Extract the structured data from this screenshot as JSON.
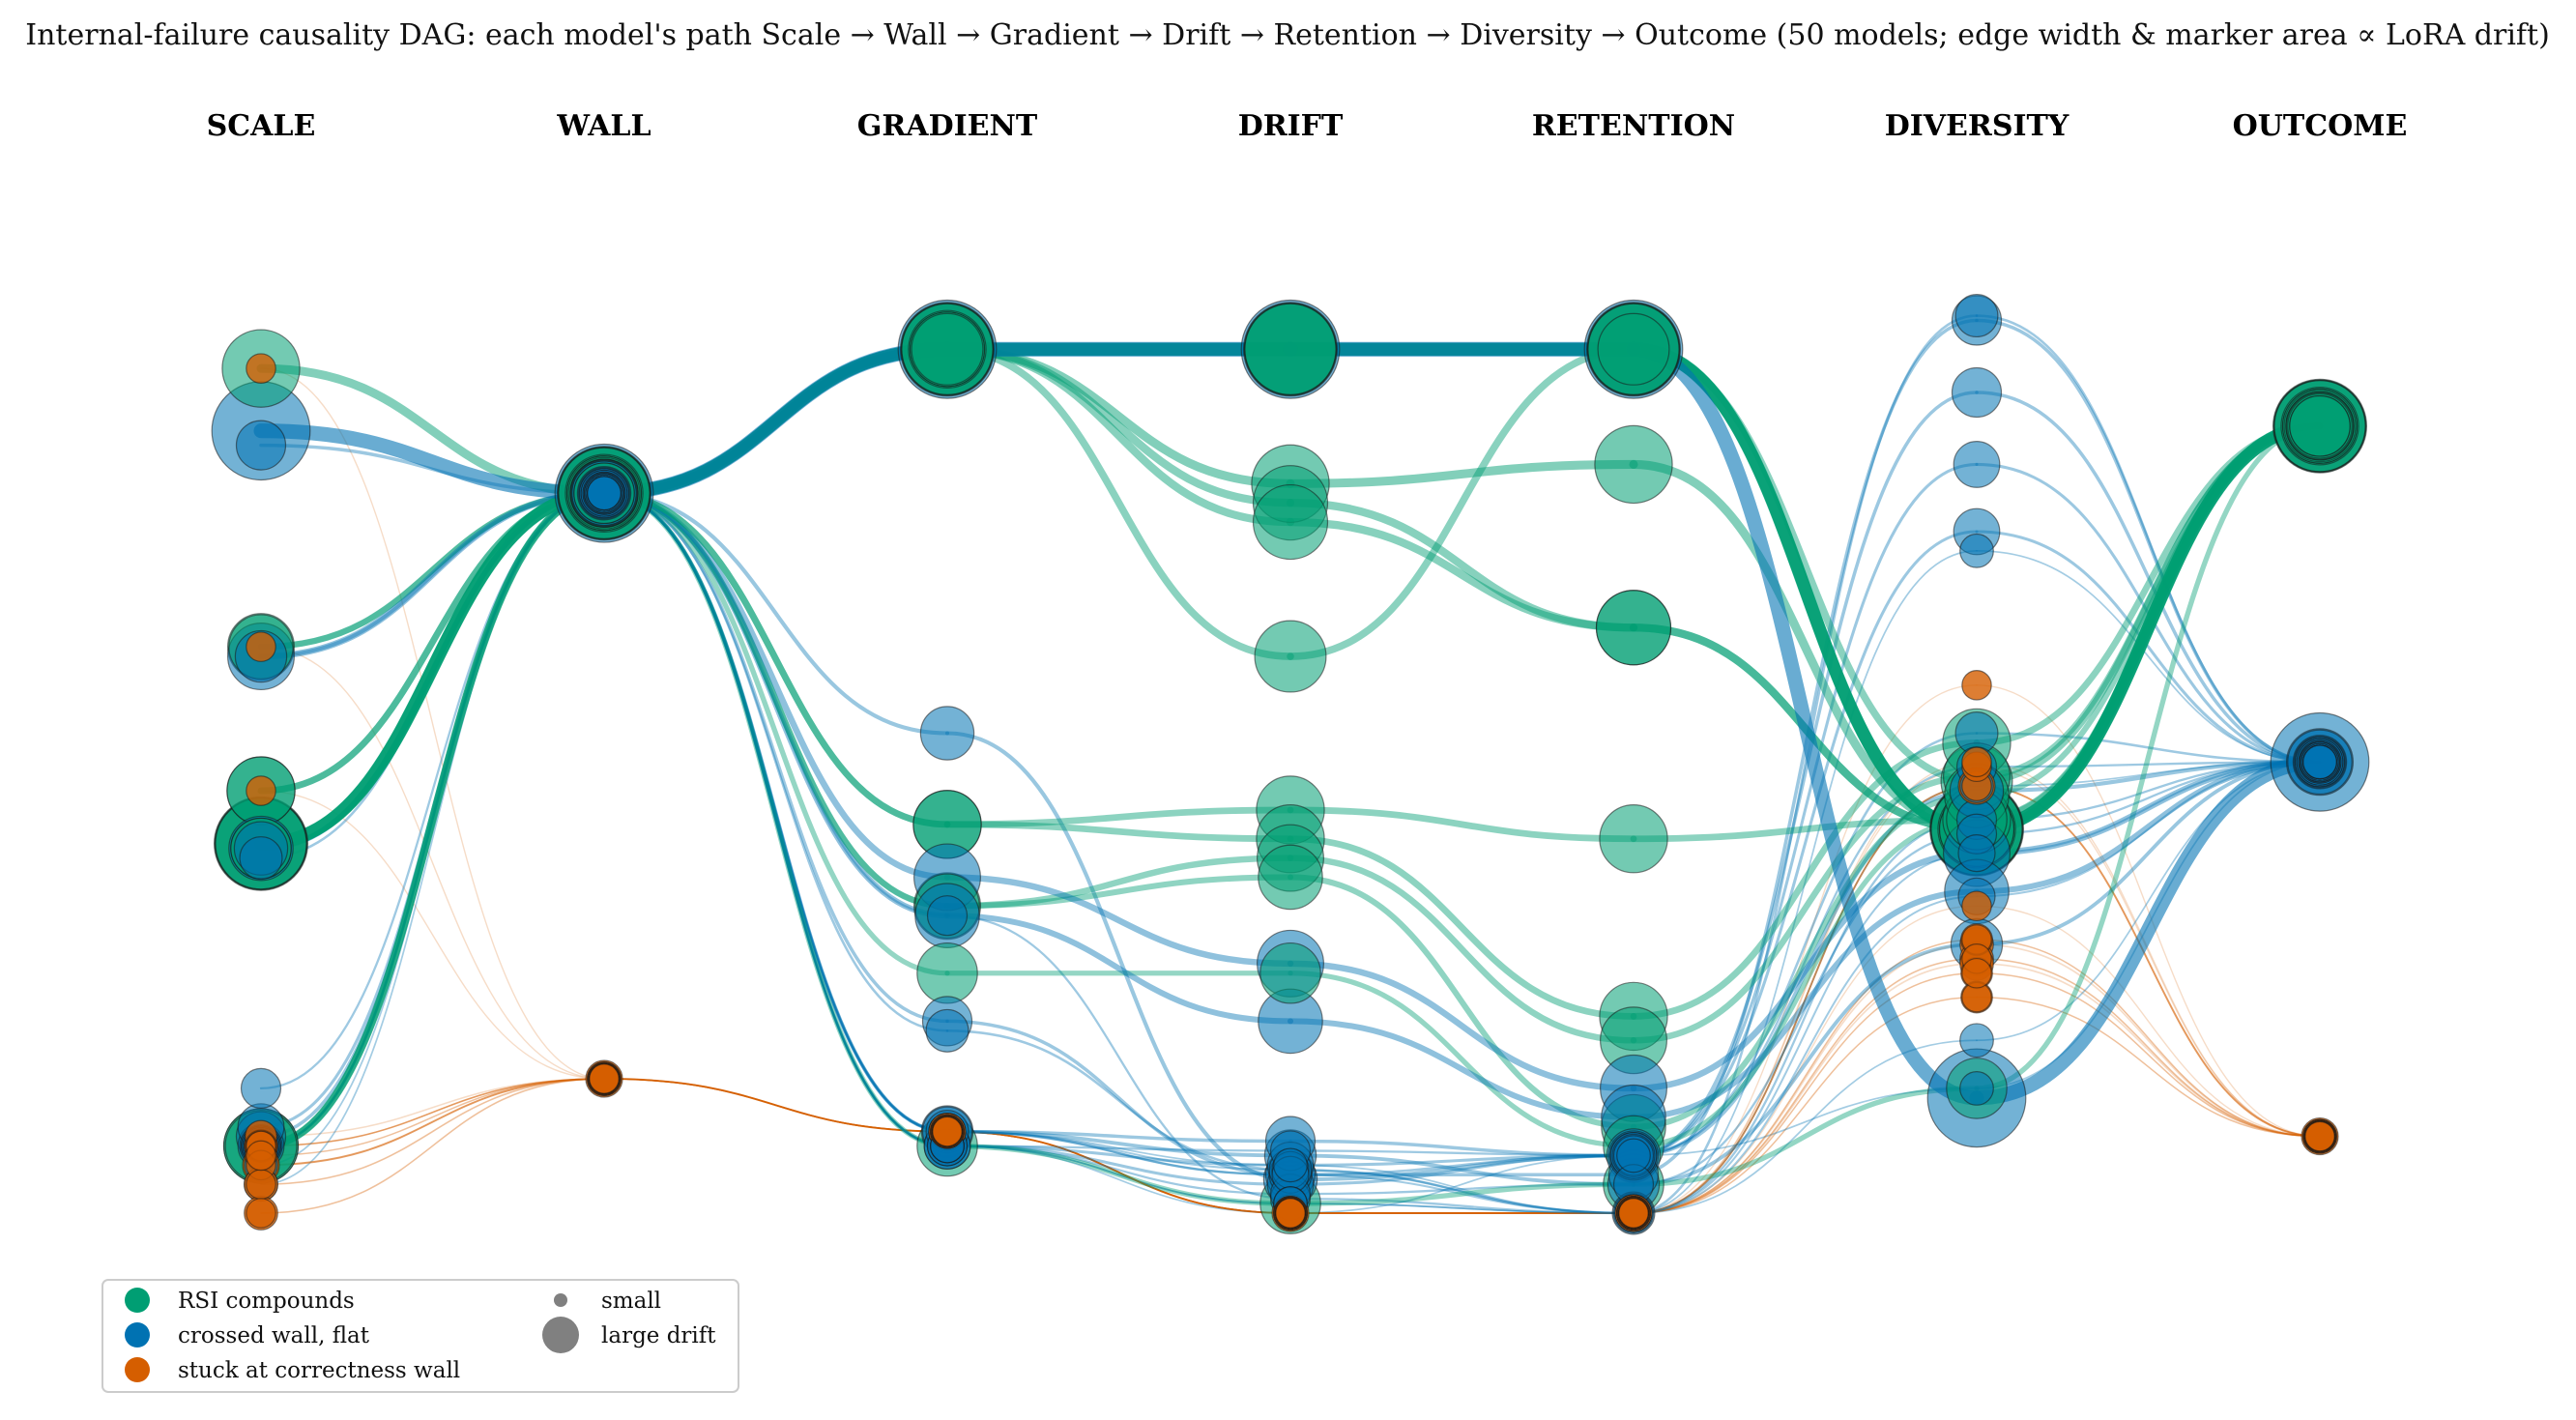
{
  "figure": {
    "title": "Internal-failure causality DAG: each model's path Scale → Wall → Gradient → Drift → Retention → Diversity → Outcome (50 models; edge width & marker area ∝ LoRA drift)"
  },
  "columns": [
    "SCALE",
    "WALL",
    "GRADIENT",
    "DRIFT",
    "RETENTION",
    "DIVERSITY",
    "OUTCOME"
  ],
  "colors": {
    "rsi": "#009E73",
    "flat": "#0072B2",
    "stuck": "#D55E00",
    "size_key": "#808080"
  },
  "legend": {
    "rsi": "RSI compounds",
    "flat": "crossed wall, flat",
    "stuck": "stuck at correctness wall",
    "small": "small",
    "large": "large drift"
  },
  "chart_data": {
    "type": "sankey-dag",
    "stages": [
      "Scale",
      "Wall",
      "Gradient",
      "Drift",
      "Retention",
      "Diversity",
      "Outcome"
    ],
    "categories": [
      "RSI compounds",
      "crossed wall, flat",
      "stuck at correctness wall"
    ],
    "model_count": 50,
    "paths": [
      {
        "c": "flat",
        "d": 0.95,
        "p": [
          0.815,
          0.75,
          0.9,
          0.9,
          0.9,
          0.12,
          0.47
        ]
      },
      {
        "c": "rsi",
        "d": 0.8,
        "p": [
          0.385,
          0.75,
          0.9,
          0.9,
          0.9,
          0.4,
          0.82
        ]
      },
      {
        "c": "rsi",
        "d": 0.8,
        "p": [
          0.385,
          0.75,
          0.9,
          0.9,
          0.9,
          0.4,
          0.82
        ]
      },
      {
        "c": "rsi",
        "d": 0.82,
        "p": [
          0.385,
          0.75,
          0.9,
          0.9,
          0.9,
          0.4,
          0.82
        ]
      },
      {
        "c": "rsi",
        "d": 0.85,
        "p": [
          0.385,
          0.75,
          0.9,
          0.9,
          0.9,
          0.4,
          0.82
        ]
      },
      {
        "c": "rsi",
        "d": 0.55,
        "p": [
          0.88,
          0.75,
          0.9,
          0.76,
          0.78,
          0.4,
          0.82
        ]
      },
      {
        "c": "rsi",
        "d": 0.5,
        "p": [
          0.07,
          0.75,
          0.9,
          0.74,
          0.61,
          0.4,
          0.82
        ]
      },
      {
        "c": "rsi",
        "d": 0.5,
        "p": [
          0.07,
          0.75,
          0.9,
          0.72,
          0.61,
          0.4,
          0.82
        ]
      },
      {
        "c": "rsi",
        "d": 0.45,
        "p": [
          0.07,
          0.75,
          0.9,
          0.58,
          0.9,
          0.45,
          0.82
        ]
      },
      {
        "c": "rsi",
        "d": 0.4,
        "p": [
          0.44,
          0.75,
          0.405,
          0.42,
          0.39,
          0.41,
          0.82
        ]
      },
      {
        "c": "rsi",
        "d": 0.4,
        "p": [
          0.44,
          0.75,
          0.405,
          0.39,
          0.205,
          0.49,
          0.82
        ]
      },
      {
        "c": "rsi",
        "d": 0.38,
        "p": [
          0.59,
          0.75,
          0.32,
          0.37,
          0.18,
          0.455,
          0.82
        ]
      },
      {
        "c": "rsi",
        "d": 0.35,
        "p": [
          0.59,
          0.75,
          0.32,
          0.35,
          0.09,
          0.435,
          0.82
        ]
      },
      {
        "c": "rsi",
        "d": 0.3,
        "p": [
          0.38,
          0.75,
          0.25,
          0.25,
          0.07,
          0.41,
          0.82
        ]
      },
      {
        "c": "rsi",
        "d": 0.3,
        "p": [
          0.38,
          0.75,
          0.07,
          0.01,
          0.03,
          0.13,
          0.82
        ]
      },
      {
        "c": "flat",
        "d": 0.38,
        "p": [
          0.58,
          0.75,
          0.35,
          0.26,
          0.13,
          0.375,
          0.47
        ]
      },
      {
        "c": "flat",
        "d": 0.35,
        "p": [
          0.38,
          0.75,
          0.31,
          0.2,
          0.1,
          0.335,
          0.47
        ]
      },
      {
        "c": "flat",
        "d": 0.2,
        "p": [
          0.58,
          0.75,
          0.085,
          0.06,
          0.03,
          0.28,
          0.47
        ]
      },
      {
        "c": "flat",
        "d": 0.22,
        "p": [
          0.38,
          0.75,
          0.5,
          0.035,
          0.06,
          0.44,
          0.47
        ]
      },
      {
        "c": "flat",
        "d": 0.18,
        "p": [
          0.8,
          0.75,
          0.2,
          0.04,
          0.04,
          0.93,
          0.47
        ]
      },
      {
        "c": "flat",
        "d": 0.18,
        "p": [
          0.08,
          0.75,
          0.085,
          0.075,
          0.06,
          0.855,
          0.47
        ]
      },
      {
        "c": "flat",
        "d": 0.15,
        "p": [
          0.07,
          0.75,
          0.07,
          0.03,
          0.06,
          0.78,
          0.47
        ]
      },
      {
        "c": "flat",
        "d": 0.15,
        "p": [
          0.09,
          0.75,
          0.07,
          0.05,
          0.06,
          0.71,
          0.47
        ]
      },
      {
        "c": "flat",
        "d": 0.12,
        "p": [
          0.07,
          0.75,
          0.085,
          0.04,
          0.06,
          0.5,
          0.47
        ]
      },
      {
        "c": "flat",
        "d": 0.12,
        "p": [
          0.37,
          0.75,
          0.19,
          0.045,
          0.0,
          0.935,
          0.47
        ]
      },
      {
        "c": "flat",
        "d": 0.1,
        "p": [
          0.13,
          0.75,
          0.31,
          0.015,
          0.0,
          0.41,
          0.47
        ]
      },
      {
        "c": "flat",
        "d": 0.1,
        "p": [
          0.07,
          0.75,
          0.07,
          0.065,
          0.06,
          0.465,
          0.47
        ]
      },
      {
        "c": "flat",
        "d": 0.1,
        "p": [
          0.07,
          0.75,
          0.07,
          0.02,
          0.03,
          0.395,
          0.47
        ]
      },
      {
        "c": "flat",
        "d": 0.08,
        "p": [
          0.07,
          0.75,
          0.085,
          0.045,
          0.0,
          0.375,
          0.47
        ]
      },
      {
        "c": "flat",
        "d": 0.08,
        "p": [
          0.07,
          0.75,
          0.085,
          0.04,
          0.0,
          0.33,
          0.47
        ]
      },
      {
        "c": "flat",
        "d": 0.06,
        "p": [
          0.07,
          0.75,
          0.07,
          0.01,
          0.0,
          0.18,
          0.47
        ]
      },
      {
        "c": "flat",
        "d": 0.06,
        "p": [
          0.05,
          0.75,
          0.07,
          0.0,
          0.06,
          0.13,
          0.47
        ]
      },
      {
        "c": "flat",
        "d": 0.06,
        "p": [
          0.07,
          0.75,
          0.07,
          0.01,
          0.0,
          0.69,
          0.47
        ]
      },
      {
        "c": "flat",
        "d": 0.06,
        "p": [
          0.03,
          0.75,
          0.085,
          0.05,
          0.0,
          0.445,
          0.47
        ]
      },
      {
        "c": "stuck",
        "d": 0.08,
        "p": [
          0.05,
          0.14,
          0.085,
          0.0,
          0.0,
          0.445,
          0.08
        ]
      },
      {
        "c": "stuck",
        "d": 0.06,
        "p": [
          0.03,
          0.14,
          0.085,
          0.0,
          0.0,
          0.28,
          0.08
        ]
      },
      {
        "c": "stuck",
        "d": 0.06,
        "p": [
          0.07,
          0.14,
          0.085,
          0.0,
          0.0,
          0.265,
          0.08
        ]
      },
      {
        "c": "stuck",
        "d": 0.06,
        "p": [
          0.0,
          0.14,
          0.085,
          0.0,
          0.0,
          0.26,
          0.08
        ]
      },
      {
        "c": "stuck",
        "d": 0.05,
        "p": [
          0.08,
          0.14,
          0.085,
          0.0,
          0.0,
          0.25,
          0.08
        ]
      },
      {
        "c": "stuck",
        "d": 0.05,
        "p": [
          0.06,
          0.14,
          0.085,
          0.0,
          0.0,
          0.225,
          0.08
        ]
      },
      {
        "c": "stuck",
        "d": 0.05,
        "p": [
          0.07,
          0.14,
          0.085,
          0.0,
          0.0,
          0.285,
          0.08
        ]
      },
      {
        "c": "stuck",
        "d": 0.04,
        "p": [
          0.07,
          0.14,
          0.085,
          0.0,
          0.0,
          0.32,
          0.08
        ]
      },
      {
        "c": "stuck",
        "d": 0.04,
        "p": [
          0.44,
          0.14,
          0.085,
          0.0,
          0.0,
          0.55,
          0.08
        ]
      },
      {
        "c": "stuck",
        "d": 0.04,
        "p": [
          0.59,
          0.14,
          0.085,
          0.0,
          0.0,
          0.445,
          0.08
        ]
      },
      {
        "c": "stuck",
        "d": 0.04,
        "p": [
          0.88,
          0.14,
          0.085,
          0.0,
          0.0,
          0.465,
          0.08
        ]
      },
      {
        "c": "stuck",
        "d": 0.04,
        "p": [
          0.07,
          0.14,
          0.085,
          0.0,
          0.0,
          0.47,
          0.08
        ]
      },
      {
        "c": "stuck",
        "d": 0.04,
        "p": [
          0.05,
          0.14,
          0.085,
          0.0,
          0.0,
          0.285,
          0.08
        ]
      },
      {
        "c": "stuck",
        "d": 0.04,
        "p": [
          0.03,
          0.14,
          0.085,
          0.0,
          0.0,
          0.265,
          0.08
        ]
      },
      {
        "c": "stuck",
        "d": 0.04,
        "p": [
          0.0,
          0.14,
          0.085,
          0.0,
          0.0,
          0.225,
          0.08
        ]
      },
      {
        "c": "stuck",
        "d": 0.04,
        "p": [
          0.06,
          0.14,
          0.085,
          0.0,
          0.0,
          0.25,
          0.08
        ]
      }
    ]
  }
}
